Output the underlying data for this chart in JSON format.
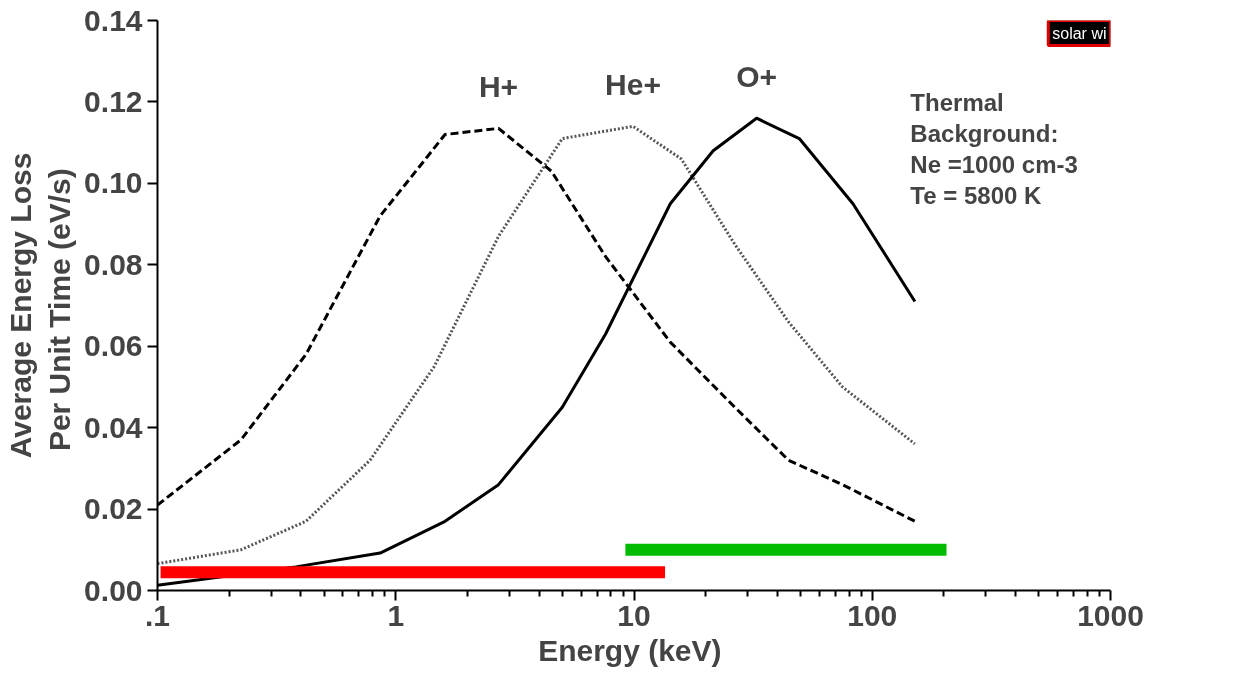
{
  "chart_data": {
    "type": "line",
    "xlabel": "Energy  (keV)",
    "ylabel": "Average Energy Loss\nPer Unit Time  (eV/s)",
    "log": "x",
    "xlim": [
      0.1,
      1000
    ],
    "xticks": [
      {
        "value": 0.1,
        "label": ".1"
      },
      1,
      10,
      100,
      1000
    ],
    "ylim": [
      0,
      0.14
    ],
    "yticks": [
      {
        "value": 0,
        "label": "0.00"
      },
      {
        "value": 0.02,
        "label": "0.02"
      },
      {
        "value": 0.04,
        "label": "0.04"
      },
      {
        "value": 0.06,
        "label": "0.06"
      },
      {
        "value": 0.08,
        "label": "0.08"
      },
      {
        "value": 0.1,
        "label": "0.10"
      },
      {
        "value": 0.12,
        "label": "0.12"
      },
      {
        "value": 0.14,
        "label": "0.14"
      }
    ],
    "grid": false,
    "series": [
      {
        "name": "H+",
        "color": "#000000",
        "line_style": "dashed",
        "x": [
          0.1,
          0.224,
          0.42,
          0.86,
          1.61,
          2.7,
          4.5,
          7.6,
          14.2,
          26.5,
          44.5,
          75,
          151
        ],
        "values": [
          0.021,
          0.037,
          0.058,
          0.092,
          0.112,
          0.1135,
          0.103,
          0.082,
          0.061,
          0.045,
          0.032,
          0.026,
          0.017
        ]
      },
      {
        "name": "He+",
        "color": "#555555",
        "line_style": "dotted",
        "x": [
          0.1,
          0.224,
          0.42,
          0.78,
          1.45,
          2.7,
          5.0,
          9.9,
          15.8,
          26.5,
          44.5,
          75,
          151
        ],
        "values": [
          0.0066,
          0.01,
          0.017,
          0.032,
          0.055,
          0.087,
          0.111,
          0.114,
          0.106,
          0.085,
          0.066,
          0.05,
          0.036
        ]
      },
      {
        "name": "O+",
        "color": "#000000",
        "line_style": "solid",
        "x": [
          0.1,
          0.38,
          0.86,
          1.61,
          2.7,
          5.0,
          7.6,
          14.2,
          21.5,
          32.7,
          49.4,
          83,
          151
        ],
        "values": [
          0.0013,
          0.0058,
          0.0092,
          0.017,
          0.026,
          0.045,
          0.063,
          0.095,
          0.108,
          0.116,
          0.111,
          0.095,
          0.071
        ]
      },
      {
        "color": "#ff0000",
        "line_style": "solid",
        "x": [
          0.103,
          13.5
        ],
        "values": [
          0.0045,
          0.0045
        ]
      },
      {
        "color": "#00bb00",
        "line_style": "solid",
        "x": [
          9.2,
          205
        ],
        "values": [
          0.01,
          0.01
        ]
      }
    ],
    "annotations": [
      "Thermal\nBackground:\nNe  =1000  cm-3\nTe  =  5800  K",
      "solar wi"
    ]
  }
}
